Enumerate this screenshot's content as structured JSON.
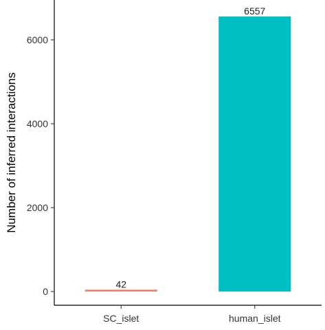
{
  "chart_data": {
    "type": "bar",
    "categories": [
      "SC_islet",
      "human_islet"
    ],
    "values": [
      42,
      6557
    ],
    "data_labels": [
      "42",
      "6557"
    ],
    "colors": [
      "#F8766D",
      "#00BFC4"
    ],
    "xlabel": "",
    "ylabel": "Number of inferred interactions",
    "ylim": [
      0,
      6900
    ],
    "yticks": [
      0,
      2000,
      4000,
      6000
    ],
    "ytick_labels": [
      "0",
      "2000",
      "4000",
      "6000"
    ],
    "grid": false,
    "legend": "none"
  }
}
